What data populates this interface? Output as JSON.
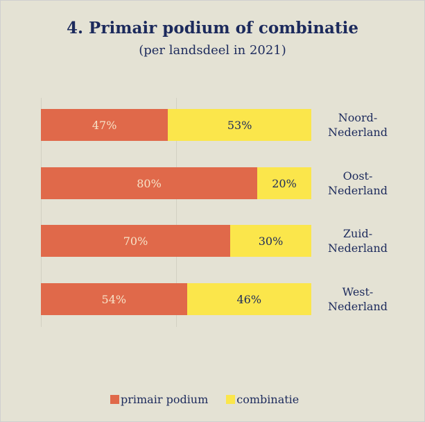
{
  "chart_data": {
    "type": "stacked-bar-horizontal",
    "title": "4. Primair podium of combinatie",
    "subtitle": "(per landsdeel in 2021)",
    "categories": [
      "Noord-Nederland",
      "Oost-Nederland",
      "Zuid-Nederland",
      "West-Nederland"
    ],
    "series": [
      {
        "name": "primair podium",
        "color": "#e0694a",
        "values": [
          47,
          80,
          70,
          54
        ],
        "value_labels": [
          "47%",
          "80%",
          "70%",
          "54%"
        ]
      },
      {
        "name": "combinatie",
        "color": "#fbe64b",
        "values": [
          53,
          20,
          30,
          46
        ],
        "value_labels": [
          "53%",
          "20%",
          "30%",
          "46%"
        ]
      }
    ],
    "xlim": [
      0,
      100
    ],
    "xticks": [
      0,
      50,
      100
    ],
    "grid": true
  }
}
